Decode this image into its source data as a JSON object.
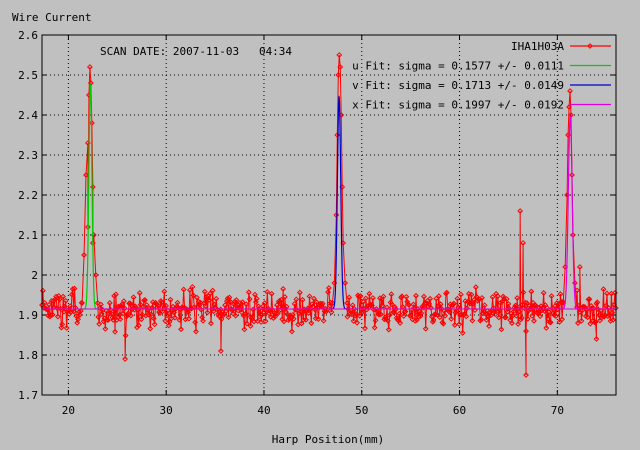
{
  "chart_data": {
    "type": "line",
    "title": "",
    "ylabel": "Wire Current",
    "xlabel": "Harp Position(mm)",
    "annotation": "SCAN DATE: 2007-11-03   04:34",
    "xlim": [
      17.3,
      76.0
    ],
    "ylim": [
      1.7,
      2.6
    ],
    "x_ticks": [
      "20",
      "30",
      "40",
      "50",
      "60",
      "70"
    ],
    "y_ticks": [
      "1.7",
      "1.8",
      "1.9",
      "2",
      "2.1",
      "2.2",
      "2.3",
      "2.4",
      "2.5",
      "2.6"
    ],
    "grid": true,
    "legend_position": "top-right",
    "baseline": 1.915,
    "series": [
      {
        "name": "IHA1H03A",
        "color": "#ff0000",
        "style": "line-points",
        "noise_sigma": 0.022,
        "x_range": [
          17.3,
          76.0
        ],
        "peaks": [
          {
            "x": [
              21.4,
              21.6,
              21.8,
              22.0,
              22.1,
              22.2,
              22.3,
              22.4,
              22.5,
              22.6,
              22.8,
              23.0
            ],
            "y": [
              1.93,
              2.05,
              2.25,
              2.33,
              2.45,
              2.52,
              2.48,
              2.38,
              2.22,
              2.1,
              2.0,
              1.93
            ]
          },
          {
            "x": [
              47.0,
              47.2,
              47.4,
              47.5,
              47.6,
              47.7,
              47.8,
              47.9,
              48.0,
              48.1,
              48.3,
              48.5
            ],
            "y": [
              1.93,
              1.98,
              2.15,
              2.35,
              2.5,
              2.55,
              2.52,
              2.4,
              2.22,
              2.08,
              1.98,
              1.93
            ]
          },
          {
            "x": [
              70.6,
              70.8,
              71.0,
              71.1,
              71.2,
              71.3,
              71.4,
              71.5,
              71.6,
              71.8,
              72.0
            ],
            "y": [
              1.93,
              2.02,
              2.2,
              2.35,
              2.42,
              2.46,
              2.4,
              2.25,
              2.1,
              1.98,
              1.92
            ]
          }
        ],
        "outliers": [
          {
            "x": 22.0,
            "y": 2.12
          },
          {
            "x": 22.5,
            "y": 2.08
          },
          {
            "x": 25.8,
            "y": 1.79
          },
          {
            "x": 35.6,
            "y": 1.81
          },
          {
            "x": 66.2,
            "y": 2.16
          },
          {
            "x": 66.8,
            "y": 1.75
          },
          {
            "x": 66.5,
            "y": 2.08
          },
          {
            "x": 72.3,
            "y": 2.02
          },
          {
            "x": 74.0,
            "y": 1.84
          }
        ]
      },
      {
        "name": "u  Fit: sigma = 0.1577 +/- 0.0111",
        "color": "#00cc00",
        "style": "line",
        "fit": {
          "mu": 22.25,
          "sigma": 0.1577,
          "amplitude": 0.56,
          "baseline": 1.915
        }
      },
      {
        "name": "v  Fit: sigma = 0.1713 +/- 0.0149",
        "color": "#0000cc",
        "style": "line",
        "fit": {
          "mu": 47.68,
          "sigma": 0.1713,
          "amplitude": 0.53,
          "baseline": 1.915
        }
      },
      {
        "name": "x  Fit: sigma = 0.1997 +/- 0.0192",
        "color": "#dd00dd",
        "style": "line",
        "fit": {
          "mu": 71.32,
          "sigma": 0.1997,
          "amplitude": 0.48,
          "baseline": 1.915
        }
      }
    ]
  }
}
